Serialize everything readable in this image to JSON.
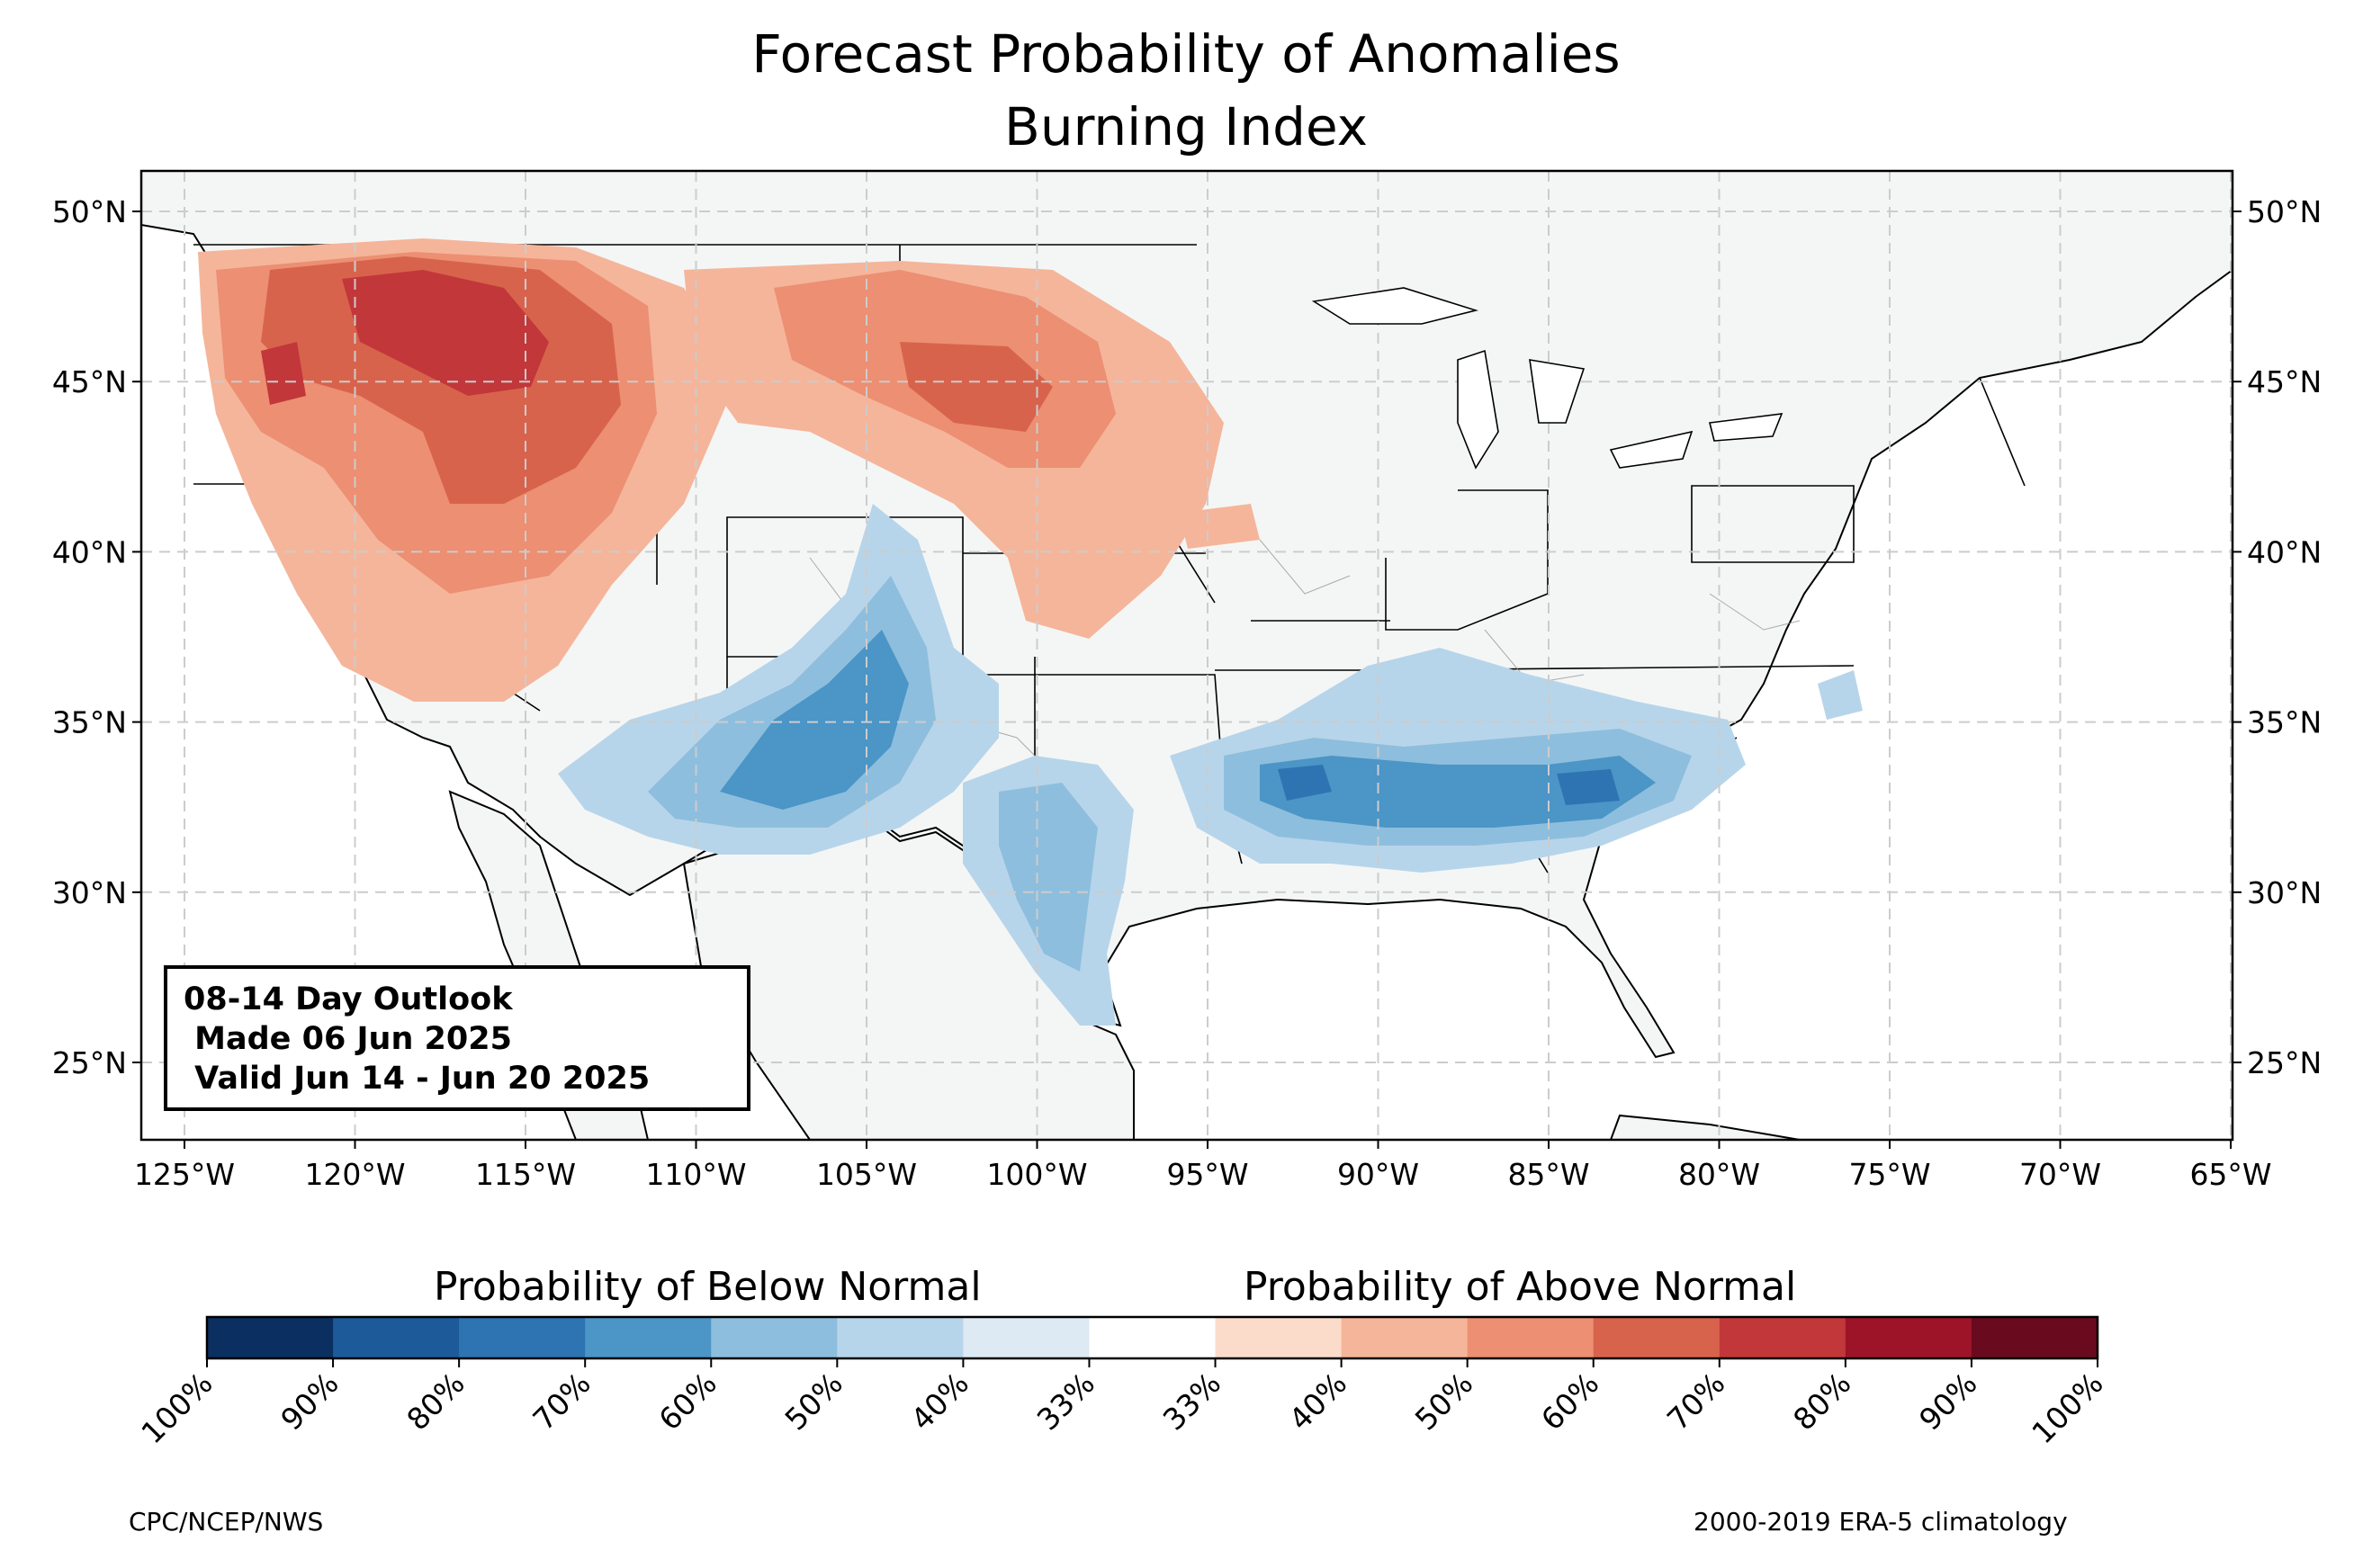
{
  "title": "Forecast Probability of Anomalies",
  "subtitle": "Burning Index",
  "outlook": {
    "line1": "08-14 Day Outlook",
    "line2": " Made 06 Jun 2025",
    "line3": " Valid Jun 14 - Jun 20 2025"
  },
  "longitude_labels": [
    "125°W",
    "120°W",
    "115°W",
    "110°W",
    "105°W",
    "100°W",
    "95°W",
    "90°W",
    "85°W",
    "80°W",
    "75°W",
    "70°W",
    "65°W"
  ],
  "latitude_labels": [
    "50°N",
    "45°N",
    "40°N",
    "35°N",
    "30°N",
    "25°N"
  ],
  "colorbar": {
    "below_label": "Probability of Below Normal",
    "above_label": "Probability of Above Normal",
    "tick_labels": [
      "100%",
      "90%",
      "80%",
      "70%",
      "60%",
      "50%",
      "40%",
      "33%",
      "33%",
      "40%",
      "50%",
      "60%",
      "70%",
      "80%",
      "90%",
      "100%"
    ],
    "colors": [
      "#0a2f60",
      "#1c5a9a",
      "#2e74b3",
      "#4b95c7",
      "#8ebedd",
      "#b7d5ea",
      "#dde9f3",
      "#ffffff",
      "#fbdccb",
      "#f5b59a",
      "#ec8f72",
      "#d8634d",
      "#c2373a",
      "#9d1428",
      "#6a0a1f"
    ]
  },
  "credit_left": "CPC/NCEP/NWS",
  "credit_right": "2000-2019 ERA-5 climatology",
  "colors": {
    "land": "#f4f6f6",
    "grid": "#cccccc",
    "above_light": "#f5b59a",
    "above_mid": "#ec8f72",
    "above_strong": "#d8634d",
    "above_max": "#c2373a",
    "below_light": "#b7d5ea",
    "below_mid": "#8ebedd",
    "below_strong": "#4b95c7",
    "below_max": "#2e74b3"
  }
}
